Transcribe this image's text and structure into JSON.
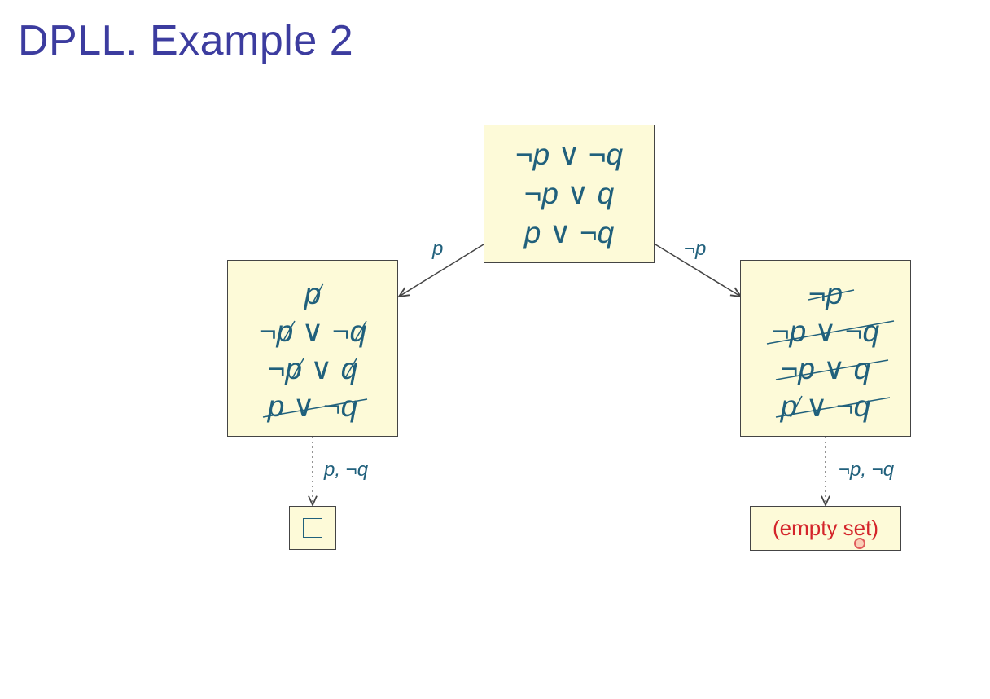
{
  "title": "DPLL. Example 2",
  "root": {
    "clauses": [
      [
        "¬",
        "p",
        " ∨ ",
        "¬",
        "q"
      ],
      [
        "¬",
        "p",
        " ∨ ",
        "",
        "q"
      ],
      [
        "",
        "p",
        " ∨ ",
        "¬",
        "q"
      ]
    ]
  },
  "left": {
    "edge_label": "p",
    "clauses": [
      [
        "",
        "p",
        "",
        "",
        ""
      ],
      [
        "¬",
        "p",
        " ∨ ",
        "¬",
        "q"
      ],
      [
        "¬",
        "p",
        " ∨ ",
        "",
        "q"
      ],
      [
        "",
        "p",
        " ∨ ",
        "¬",
        "q"
      ]
    ],
    "unit_label": "p, ¬q",
    "result_symbol": "empty-clause-box"
  },
  "right": {
    "edge_label": "¬p",
    "clauses": [
      [
        "¬",
        "p",
        "",
        "",
        ""
      ],
      [
        "¬",
        "p",
        " ∨ ",
        "¬",
        "q"
      ],
      [
        "¬",
        "p",
        " ∨ ",
        "",
        "q"
      ],
      [
        "",
        "p",
        " ∨ ",
        "¬",
        "q"
      ]
    ],
    "unit_label": "¬p, ¬q",
    "result_text": "(empty set)"
  },
  "colors": {
    "title": "#3c3c9f",
    "formula": "#20607c",
    "node_fill": "#fdfad8",
    "result_text": "#d4252b"
  }
}
